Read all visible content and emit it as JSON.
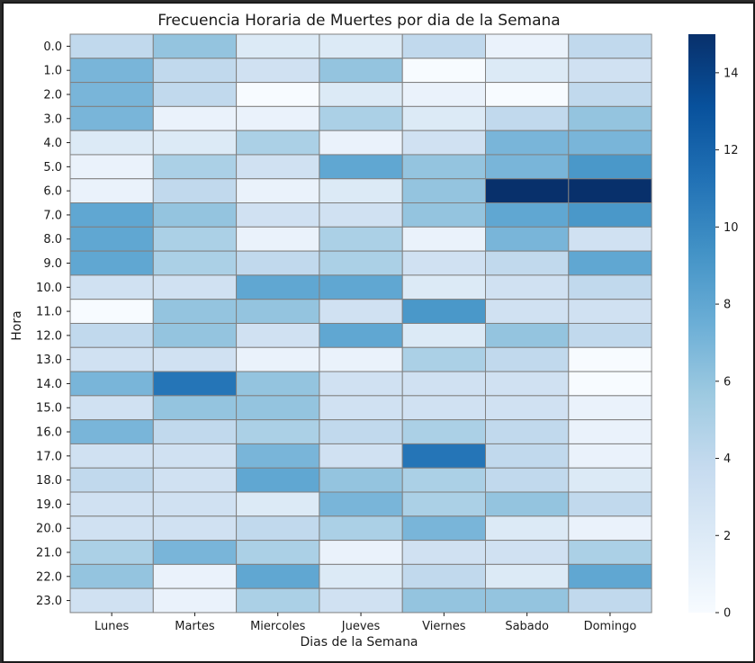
{
  "chart_data": {
    "type": "heatmap",
    "title": "Frecuencia Horaria de Muertes por dia de la Semana",
    "xlabel": "Dias de la Semana",
    "ylabel": "Hora",
    "x_categories": [
      "Lunes",
      "Martes",
      "Miercoles",
      "Jueves",
      "Viernes",
      "Sabado",
      "Domingo"
    ],
    "y_categories": [
      "0.0",
      "1.0",
      "2.0",
      "3.0",
      "4.0",
      "5.0",
      "6.0",
      "7.0",
      "8.0",
      "9.0",
      "10.0",
      "11.0",
      "12.0",
      "13.0",
      "14.0",
      "15.0",
      "16.0",
      "17.0",
      "18.0",
      "19.0",
      "20.0",
      "21.0",
      "22.0",
      "23.0"
    ],
    "values": [
      [
        4,
        6,
        2,
        2,
        4,
        1,
        4
      ],
      [
        7,
        4,
        3,
        6,
        0,
        2,
        3
      ],
      [
        7,
        4,
        0,
        2,
        1,
        0,
        4
      ],
      [
        7,
        1,
        1,
        5,
        2,
        4,
        6
      ],
      [
        2,
        2,
        5,
        1,
        3,
        7,
        7
      ],
      [
        1,
        5,
        3,
        8,
        6,
        7,
        9
      ],
      [
        1,
        4,
        1,
        2,
        6,
        15,
        15
      ],
      [
        8,
        6,
        3,
        3,
        6,
        8,
        9
      ],
      [
        8,
        5,
        1,
        5,
        1,
        7,
        3
      ],
      [
        8,
        5,
        4,
        5,
        3,
        4,
        8
      ],
      [
        3,
        3,
        8,
        8,
        2,
        3,
        4
      ],
      [
        0,
        6,
        6,
        3,
        9,
        3,
        3
      ],
      [
        4,
        6,
        3,
        8,
        2,
        6,
        4
      ],
      [
        3,
        3,
        1,
        1,
        5,
        4,
        0
      ],
      [
        7,
        11,
        6,
        3,
        3,
        3,
        0
      ],
      [
        3,
        6,
        6,
        3,
        3,
        3,
        1
      ],
      [
        7,
        4,
        5,
        4,
        5,
        4,
        1
      ],
      [
        3,
        3,
        7,
        3,
        11,
        4,
        1
      ],
      [
        4,
        3,
        8,
        6,
        5,
        4,
        2
      ],
      [
        3,
        3,
        2,
        7,
        5,
        6,
        4
      ],
      [
        3,
        3,
        4,
        5,
        7,
        2,
        1
      ],
      [
        5,
        7,
        5,
        1,
        3,
        3,
        5
      ],
      [
        6,
        1,
        8,
        2,
        4,
        2,
        8
      ],
      [
        3,
        1,
        5,
        3,
        6,
        6,
        4
      ]
    ],
    "vmin": 0,
    "vmax": 15,
    "colormap": "Blues",
    "colorbar_ticks": [
      "0",
      "2",
      "4",
      "6",
      "8",
      "10",
      "12",
      "14"
    ],
    "cell_border_color": "#808080"
  }
}
